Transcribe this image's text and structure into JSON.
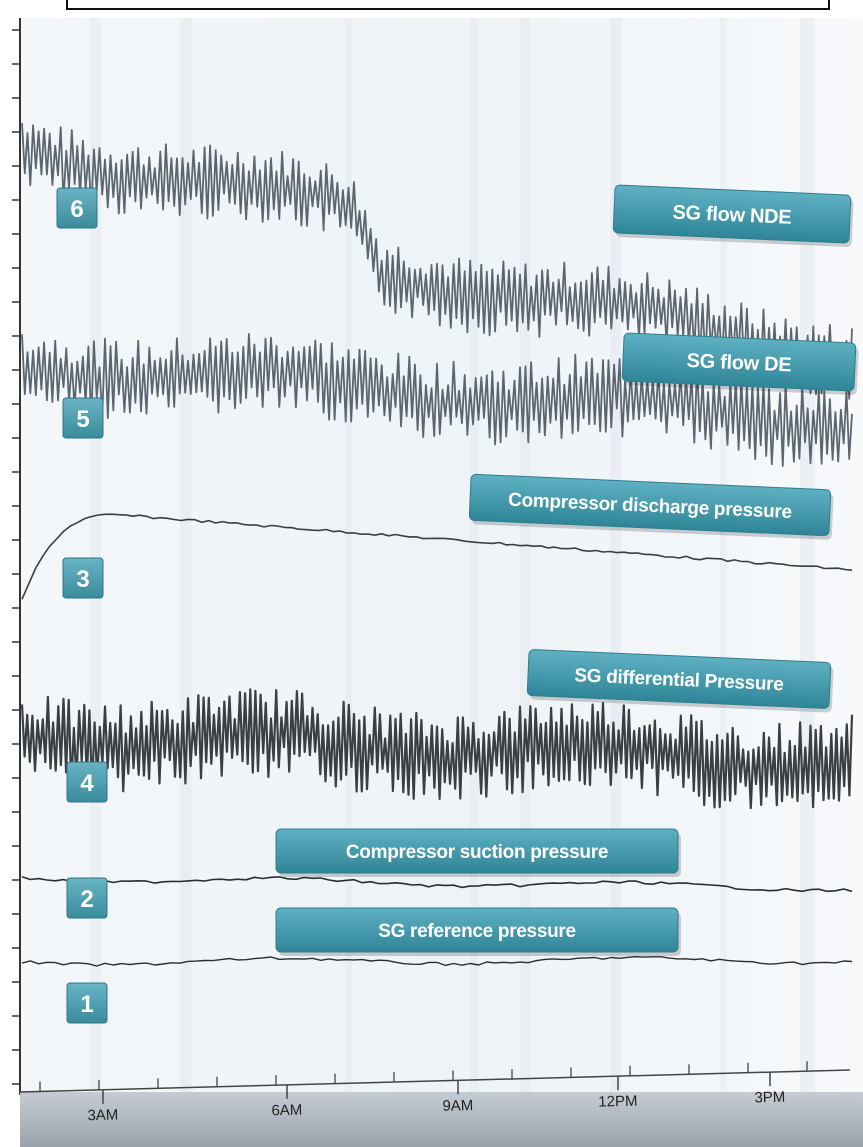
{
  "chart_data": {
    "type": "line",
    "title": "",
    "xlabel": "",
    "ylabel": "",
    "x_ticks": [
      "3AM",
      "6AM",
      "9AM",
      "12PM",
      "3PM"
    ],
    "grid": false,
    "series": [
      {
        "badge": "6",
        "name": "SG flow NDE",
        "behaviour": "oscillating, drifting downward with a step down near 7AM",
        "color": "#5b6670"
      },
      {
        "badge": "5",
        "name": "SG flow DE",
        "behaviour": "oscillating, drifting slightly downward",
        "color": "#5b6670"
      },
      {
        "badge": "3",
        "name": "Compressor discharge pressure",
        "behaviour": "quick rise at start, then flat with slight decline",
        "color": "#3a3f44"
      },
      {
        "badge": "4",
        "name": "SG differential Pressure",
        "behaviour": "large oscillations throughout",
        "color": "#3a3f44"
      },
      {
        "badge": "2",
        "name": "Compressor suction pressure",
        "behaviour": "nearly flat",
        "color": "#2a2e33"
      },
      {
        "badge": "1",
        "name": "SG reference pressure",
        "behaviour": "nearly flat",
        "color": "#2a2e33"
      }
    ]
  },
  "colors": {
    "badge": "#4a9aaa",
    "label_box": "#3f97a9",
    "axis_bar": "#a8b0b8"
  }
}
